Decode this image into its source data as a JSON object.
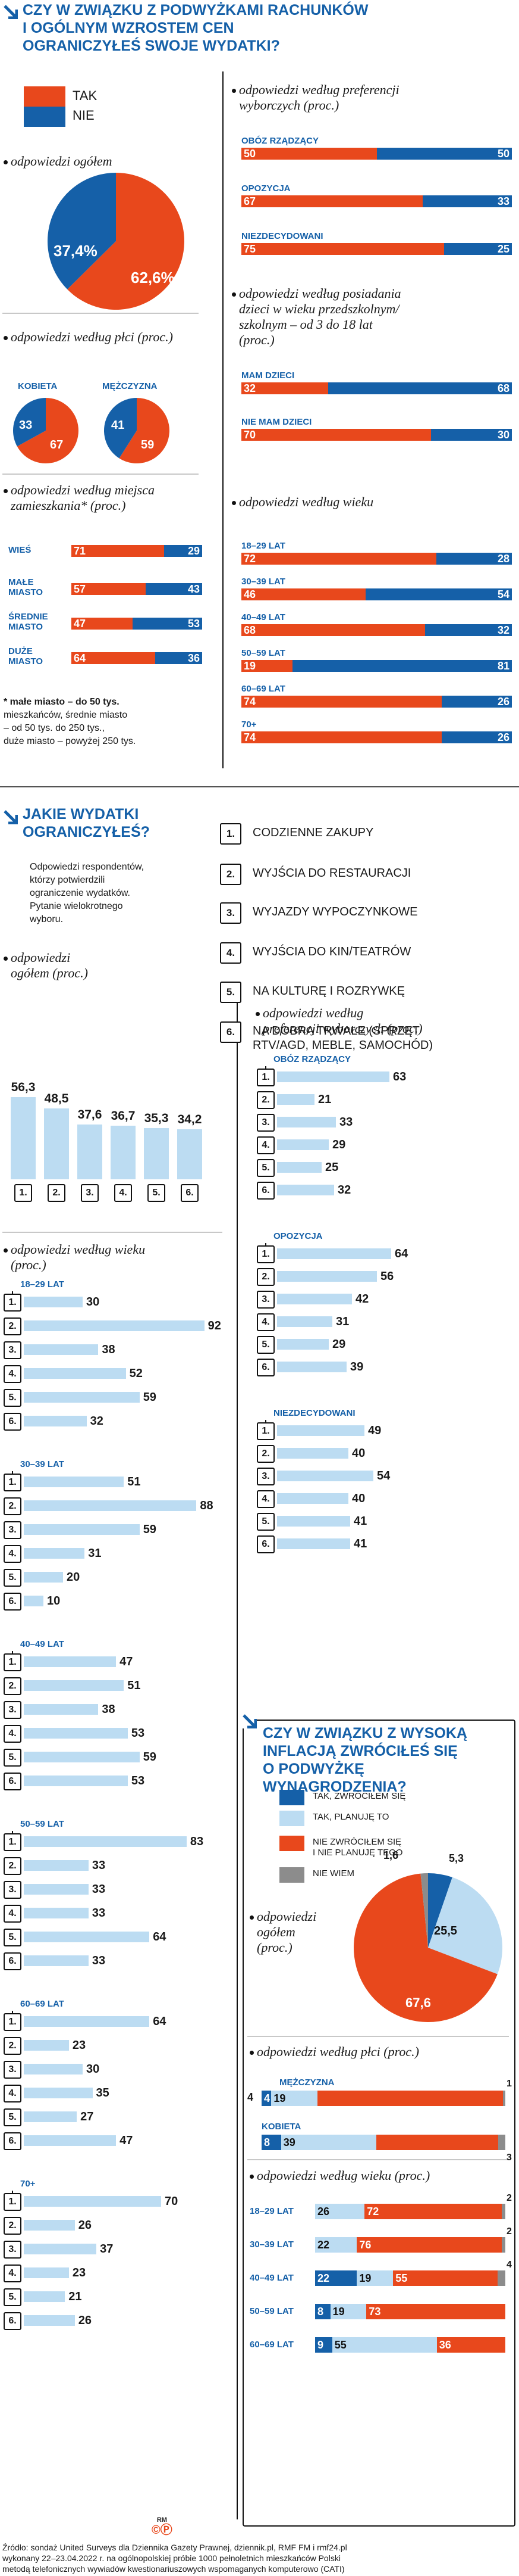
{
  "colors": {
    "tak": "#e8481c",
    "nie": "#1560a8",
    "light_blue": "#bcdcf2",
    "grey": "#8c8c8c",
    "blue_text": "#1560a8"
  },
  "section1": {
    "title_lines": [
      "CZY W ZWIĄZKU Z PODWYŻKAMI RACHUNKÓW",
      "I OGÓLNYM WZROSTEM CEN",
      "OGRANICZYŁEŚ SWOJE WYDATKI?"
    ],
    "legend": {
      "tak": "TAK",
      "nie": "NIE"
    },
    "overall": {
      "label": "odpowiedzi ogółem",
      "tak": 62.6,
      "nie": 37.4,
      "tak_label": "62,6%",
      "nie_label": "37,4%"
    },
    "gender": {
      "label": "odpowiedzi według płci (proc.)",
      "kobieta_label": "KOBIETA",
      "mezczyzna_label": "MĘŻCZYZNA",
      "kobieta": {
        "tak": 67,
        "nie": 33
      },
      "mezczyzna": {
        "tak": 59,
        "nie": 41
      }
    },
    "residence": {
      "label_lines": [
        "odpowiedzi według miejsca",
        "zamieszkania* (proc.)"
      ],
      "rows": [
        {
          "name_lines": [
            "WIEŚ"
          ],
          "tak": 71,
          "nie": 29
        },
        {
          "name_lines": [
            "MAŁE",
            "MIASTO"
          ],
          "tak": 57,
          "nie": 43
        },
        {
          "name_lines": [
            "ŚREDNIE",
            "MIASTO"
          ],
          "tak": 47,
          "nie": 53
        },
        {
          "name_lines": [
            "DUŻE",
            "MIASTO"
          ],
          "tak": 64,
          "nie": 36
        }
      ],
      "footnote_lines": [
        "* małe miasto – do 50 tys.",
        "mieszkańców, średnie miasto",
        "– od 50 tys. do 250 tys.,",
        "duże miasto – powyżej 250 tys."
      ]
    },
    "preferences": {
      "label_lines": [
        "odpowiedzi według preferencji",
        "wyborczych (proc.)"
      ],
      "rows": [
        {
          "name": "OBÓZ RZĄDZĄCY",
          "tak": 50,
          "nie": 50
        },
        {
          "name": "OPOZYCJA",
          "tak": 67,
          "nie": 33
        },
        {
          "name": "NIEZDECYDOWANI",
          "tak": 75,
          "nie": 25
        }
      ]
    },
    "children": {
      "label_lines": [
        "odpowiedzi według posiadania",
        "dzieci w wieku przedszkolnym/",
        "szkolnym – od 3 do 18 lat",
        "(proc.)"
      ],
      "rows": [
        {
          "name": "MAM DZIECI",
          "tak": 32,
          "nie": 68
        },
        {
          "name": "NIE MAM DZIECI",
          "tak": 70,
          "nie": 30
        }
      ]
    },
    "age": {
      "label": "odpowiedzi według wieku",
      "rows": [
        {
          "name": "18–29 LAT",
          "tak": 72,
          "nie": 28
        },
        {
          "name": "30–39 LAT",
          "tak": 46,
          "nie": 54
        },
        {
          "name": "40–49 LAT",
          "tak": 68,
          "nie": 32
        },
        {
          "name": "50–59 LAT",
          "tak": 19,
          "nie": 81
        },
        {
          "name": "60–69 LAT",
          "tak": 74,
          "nie": 26
        },
        {
          "name": "70+",
          "tak": 74,
          "nie": 26
        }
      ]
    }
  },
  "section2": {
    "title_lines": [
      "JAKIE WYDATKI",
      "OGRANICZYŁEŚ?"
    ],
    "intro_lines": [
      "Odpowiedzi respondentów,",
      "którzy potwierdzili",
      "ograniczenie wydatków.",
      "Pytanie wielokrotnego",
      "wyboru."
    ],
    "categories": [
      {
        "num": "1.",
        "lines": [
          "CODZIENNE ZAKUPY"
        ]
      },
      {
        "num": "2.",
        "lines": [
          "WYJŚCIA DO RESTAURACJI"
        ]
      },
      {
        "num": "3.",
        "lines": [
          "WYJAZDY WYPOCZYNKOWE"
        ]
      },
      {
        "num": "4.",
        "lines": [
          "WYJŚCIA DO KIN/TEATRÓW"
        ]
      },
      {
        "num": "5.",
        "lines": [
          "NA KULTURĘ I ROZRYWKĘ"
        ]
      },
      {
        "num": "6.",
        "lines": [
          "NA DOBRA TRWAŁE (SPRZĘT",
          "RTV/AGD, MEBLE, SAMOCHÓD)"
        ]
      }
    ],
    "overall": {
      "label_lines": [
        "odpowiedzi",
        "ogółem (proc.)"
      ],
      "values": [
        56.3,
        48.5,
        37.6,
        36.7,
        35.3,
        34.2
      ],
      "value_labels": [
        "56,3",
        "48,5",
        "37,6",
        "36,7",
        "35,3",
        "34,2"
      ],
      "nums": [
        "1.",
        "2.",
        "3.",
        "4.",
        "5.",
        "6."
      ]
    },
    "age": {
      "label_lines": [
        "odpowiedzi według wieku",
        "(proc.)"
      ],
      "groups": [
        {
          "name": "18–29 LAT",
          "values": [
            30,
            92,
            38,
            52,
            59,
            32
          ]
        },
        {
          "name": "30–39 LAT",
          "values": [
            51,
            88,
            59,
            31,
            20,
            10
          ]
        },
        {
          "name": "40–49 LAT",
          "values": [
            47,
            51,
            38,
            53,
            59,
            53
          ]
        },
        {
          "name": "50–59 LAT",
          "values": [
            83,
            33,
            33,
            33,
            64,
            33
          ]
        },
        {
          "name": "60–69 LAT",
          "values": [
            64,
            23,
            30,
            35,
            27,
            47
          ]
        },
        {
          "name": "70+",
          "values": [
            70,
            26,
            37,
            23,
            21,
            26
          ]
        }
      ]
    },
    "preferences": {
      "label_lines": [
        "odpowiedzi według",
        "preferencji wyborczych (proc.)"
      ],
      "groups": [
        {
          "name": "OBÓZ RZĄDZĄCY",
          "values": [
            63,
            21,
            33,
            29,
            25,
            32
          ]
        },
        {
          "name": "OPOZYCJA",
          "values": [
            64,
            56,
            42,
            31,
            29,
            39
          ]
        },
        {
          "name": "NIEZDECYDOWANI",
          "values": [
            49,
            40,
            54,
            40,
            41,
            41
          ]
        }
      ]
    }
  },
  "section3": {
    "title_lines": [
      "CZY W ZWIĄZKU Z WYSOKĄ",
      "INFLACJĄ ZWRÓCIŁEŚ SIĘ",
      "O PODWYŻKĘ",
      "WYNAGRODZENIA?"
    ],
    "legend": [
      {
        "key": "a",
        "lines": [
          "TAK, ZWRÓCIŁEM SIĘ"
        ],
        "color": "#1560a8"
      },
      {
        "key": "b",
        "lines": [
          "TAK, PLANUJĘ TO"
        ],
        "color": "#bcdcf2"
      },
      {
        "key": "c",
        "lines": [
          "NIE ZWRÓCIŁEM SIĘ",
          "I NIE PLANUJĘ TEGO"
        ],
        "color": "#e8481c"
      },
      {
        "key": "d",
        "lines": [
          "NIE WIEM"
        ],
        "color": "#8c8c8c"
      }
    ],
    "overall": {
      "label_lines": [
        "odpowiedzi",
        "ogółem",
        "(proc.)"
      ],
      "values": [
        5.3,
        25.5,
        67.6,
        1.6
      ],
      "labels": [
        "5,3",
        "25,5",
        "67,6",
        "1,6"
      ]
    },
    "gender": {
      "label": "odpowiedzi według płci (proc.)",
      "rows": [
        {
          "name": "MĘŻCZYZNA",
          "values": [
            4,
            19,
            76,
            1
          ],
          "labels": [
            "4",
            "19",
            "",
            "1"
          ]
        },
        {
          "name": "KOBIETA",
          "values": [
            8,
            39,
            50,
            3
          ],
          "labels": [
            "8",
            "39",
            "",
            "3"
          ]
        }
      ]
    },
    "age": {
      "label": "odpowiedzi według wieku (proc.)",
      "rows": [
        {
          "name": "18–29 LAT",
          "values": [
            0,
            26,
            72,
            2
          ],
          "labels": [
            "",
            "26",
            "72",
            "2"
          ]
        },
        {
          "name": "30–39 LAT",
          "values": [
            0,
            22,
            76,
            2
          ],
          "labels": [
            "",
            "22",
            "76",
            "2"
          ]
        },
        {
          "name": "40–49 LAT",
          "values": [
            22,
            19,
            55,
            4
          ],
          "labels": [
            "22",
            "19",
            "55",
            "4"
          ]
        },
        {
          "name": "50–59 LAT",
          "values": [
            8,
            19,
            73,
            0
          ],
          "labels": [
            "8",
            "19",
            "73",
            ""
          ]
        },
        {
          "name": "60–69 LAT",
          "values": [
            9,
            55,
            36,
            0
          ],
          "labels": [
            "9",
            "55",
            "36",
            ""
          ]
        }
      ]
    }
  },
  "footer": {
    "lines": [
      "Źródło: sondaż United Surveys dla Dziennika Gazety Prawnej, dziennik.pl, RMF FM i rmf24.pl",
      "wykonany 22–23.04.2022 r. na ogólnopolskiej próbie 1000 pełnoletnich mieszkańców Polski",
      "metodą telefonicznych wywiadów kwestionariuszowych wspomaganych komputerowo (CATI)"
    ],
    "logo_text": "RM"
  }
}
